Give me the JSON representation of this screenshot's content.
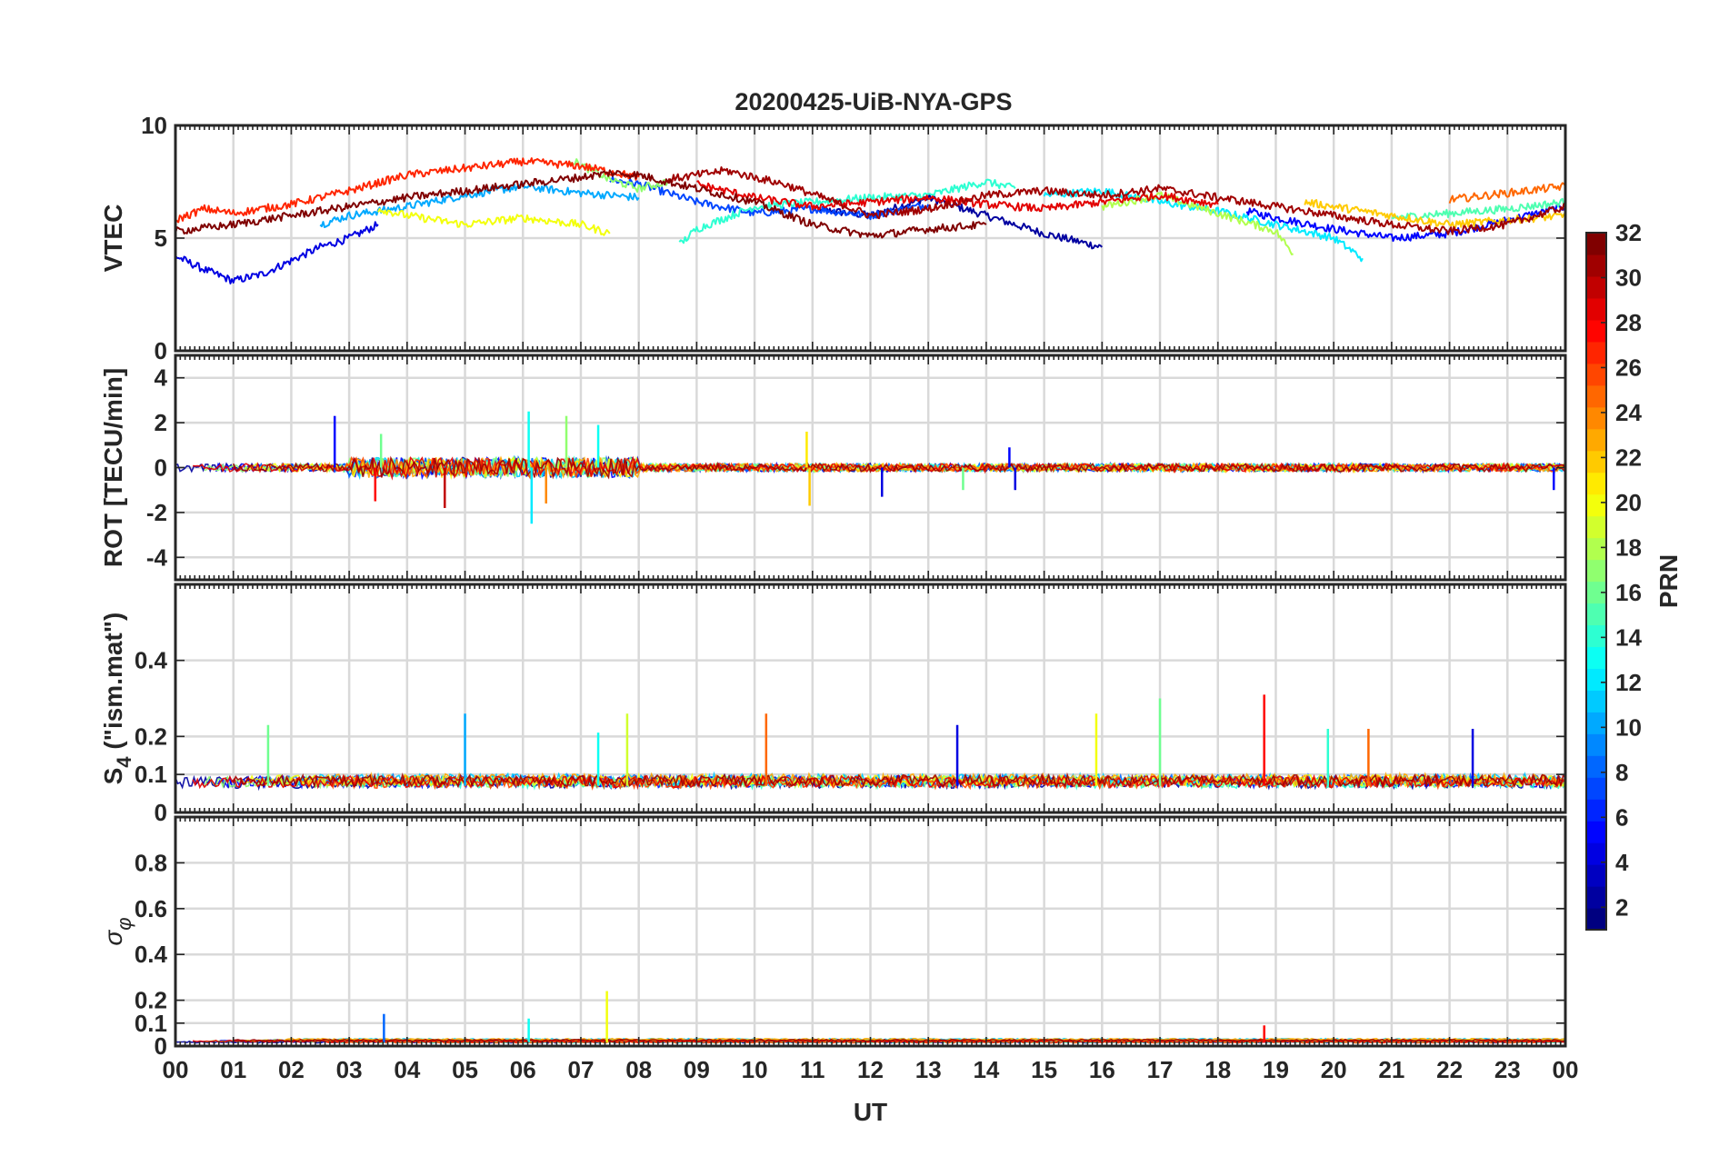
{
  "figure": {
    "title": "20200425-UiB-NYA-GPS"
  },
  "chart_data": [
    {
      "type": "line",
      "panel": "vtec",
      "title": "20200425-UiB-NYA-GPS",
      "ylabel": "VTEC",
      "xlabel": "",
      "xlim": [
        0,
        24
      ],
      "ylim": [
        0,
        10
      ],
      "yticks": [
        0,
        5,
        10
      ],
      "ytick_labels": [
        "0",
        "5",
        "10"
      ],
      "grid": true,
      "series": [
        {
          "prn": 2,
          "x": [
            11.0,
            12.0,
            13.0,
            14.0,
            15.0,
            16.0
          ],
          "y": [
            6.3,
            6.0,
            6.8,
            6.0,
            5.2,
            4.6
          ]
        },
        {
          "prn": 4,
          "x": [
            0.0,
            0.5,
            1.0,
            1.5,
            2.0,
            2.5,
            3.0,
            3.5
          ],
          "y": [
            4.2,
            3.6,
            3.1,
            3.4,
            4.0,
            4.6,
            5.0,
            5.6
          ]
        },
        {
          "prn": 5,
          "x": [
            18.5,
            19.0,
            20.0,
            21.0,
            22.0,
            23.0,
            24.0
          ],
          "y": [
            6.2,
            5.9,
            5.4,
            5.0,
            5.2,
            5.8,
            6.4
          ]
        },
        {
          "prn": 7,
          "x": [
            7.5,
            8.0,
            9.0,
            10.0,
            11.0,
            12.0,
            13.0
          ],
          "y": [
            7.6,
            7.4,
            6.6,
            6.1,
            6.3,
            6.0,
            6.5
          ]
        },
        {
          "prn": 10,
          "x": [
            2.5,
            3.0,
            4.0,
            5.0,
            6.0,
            7.0,
            8.0
          ],
          "y": [
            5.6,
            6.0,
            6.4,
            6.9,
            7.3,
            7.0,
            6.8
          ]
        },
        {
          "prn": 12,
          "x": [
            15.0,
            16.0,
            17.0,
            18.0,
            19.0,
            20.0,
            20.5
          ],
          "y": [
            6.9,
            7.1,
            6.6,
            6.2,
            5.6,
            5.0,
            4.1
          ]
        },
        {
          "prn": 14,
          "x": [
            8.7,
            9.0,
            10.0,
            11.0,
            12.0,
            13.0,
            14.0,
            14.5
          ],
          "y": [
            4.7,
            5.4,
            6.4,
            6.6,
            6.8,
            6.9,
            7.5,
            7.2
          ]
        },
        {
          "prn": 15,
          "x": [
            21.0,
            22.0,
            23.0,
            24.0
          ],
          "y": [
            5.9,
            6.1,
            6.3,
            6.6
          ]
        },
        {
          "prn": 17,
          "x": [
            6.8,
            7.5,
            8.0,
            8.5
          ],
          "y": [
            8.5,
            7.6,
            7.2,
            7.5
          ]
        },
        {
          "prn": 18,
          "x": [
            16.0,
            17.0,
            18.0,
            19.0,
            19.3
          ],
          "y": [
            6.4,
            6.9,
            6.1,
            5.3,
            4.3
          ]
        },
        {
          "prn": 20,
          "x": [
            3.5,
            4.0,
            5.0,
            6.0,
            7.0,
            7.5
          ],
          "y": [
            6.3,
            6.0,
            5.6,
            5.9,
            5.6,
            5.2
          ]
        },
        {
          "prn": 22,
          "x": [
            19.5,
            20.0,
            21.0,
            22.0,
            23.0,
            24.0
          ],
          "y": [
            6.6,
            6.4,
            6.0,
            5.6,
            5.8,
            6.0
          ]
        },
        {
          "prn": 25,
          "x": [
            22.0,
            23.0,
            24.0
          ],
          "y": [
            6.7,
            7.0,
            7.3
          ]
        },
        {
          "prn": 27,
          "x": [
            0.0,
            0.5,
            1.0,
            2.0,
            3.0,
            4.0,
            5.0,
            6.0,
            7.0,
            8.0
          ],
          "y": [
            5.8,
            6.3,
            6.1,
            6.5,
            7.1,
            7.8,
            8.1,
            8.4,
            8.2,
            7.7
          ]
        },
        {
          "prn": 29,
          "x": [
            9.0,
            10.0,
            11.0,
            12.0,
            13.0,
            14.0,
            15.0,
            16.0,
            17.0,
            18.0
          ],
          "y": [
            7.4,
            6.8,
            6.4,
            6.6,
            6.8,
            6.5,
            6.3,
            6.6,
            6.9,
            6.5
          ]
        },
        {
          "prn": 31,
          "x": [
            8.5,
            9.5,
            10.5,
            11.5,
            12.0,
            13.0,
            14.0,
            15.0,
            16.0,
            17.0,
            18.0,
            19.0,
            20.0,
            21.0,
            22.0,
            23.0,
            24.0
          ],
          "y": [
            7.6,
            8.0,
            7.4,
            6.5,
            6.0,
            6.3,
            6.9,
            7.1,
            6.9,
            7.2,
            6.8,
            6.4,
            6.0,
            5.6,
            5.3,
            5.6,
            6.4
          ]
        },
        {
          "prn": 32,
          "x": [
            0.0,
            1.0,
            2.0,
            3.0,
            4.0,
            5.0,
            6.0,
            7.0,
            7.5,
            8.0,
            9.0,
            10.0,
            11.0,
            12.0,
            13.0,
            14.0
          ],
          "y": [
            5.3,
            5.6,
            6.0,
            6.4,
            6.8,
            7.1,
            7.4,
            7.7,
            7.9,
            7.8,
            7.2,
            6.6,
            5.6,
            5.1,
            5.4,
            5.6
          ]
        }
      ]
    },
    {
      "type": "line",
      "panel": "rot",
      "ylabel": "ROT [TECU/min]",
      "xlim": [
        0,
        24
      ],
      "ylim": [
        -5,
        5
      ],
      "yticks": [
        -4,
        -2,
        0,
        2,
        4
      ],
      "ytick_labels": [
        "-4",
        "-2",
        "0",
        "2",
        "4"
      ],
      "grid": true,
      "background_level": 0,
      "spikes": [
        {
          "prn": 5,
          "x": 2.75,
          "y": 2.3
        },
        {
          "prn": 16,
          "x": 3.55,
          "y": 1.5
        },
        {
          "prn": 28,
          "x": 3.45,
          "y": -1.5
        },
        {
          "prn": 30,
          "x": 4.65,
          "y": -1.8
        },
        {
          "prn": 13,
          "x": 6.1,
          "y": 2.5
        },
        {
          "prn": 12,
          "x": 6.15,
          "y": -2.5
        },
        {
          "prn": 17,
          "x": 6.75,
          "y": 2.3
        },
        {
          "prn": 24,
          "x": 6.4,
          "y": -1.6
        },
        {
          "prn": 13,
          "x": 7.3,
          "y": 1.9
        },
        {
          "prn": 21,
          "x": 10.9,
          "y": 1.6
        },
        {
          "prn": 22,
          "x": 10.95,
          "y": -1.7
        },
        {
          "prn": 4,
          "x": 12.2,
          "y": -1.3
        },
        {
          "prn": 16,
          "x": 13.6,
          "y": -1.0
        },
        {
          "prn": 5,
          "x": 14.4,
          "y": 0.9
        },
        {
          "prn": 4,
          "x": 14.5,
          "y": -1.0
        },
        {
          "prn": 5,
          "x": 23.8,
          "y": -1.0
        }
      ]
    },
    {
      "type": "line",
      "panel": "s4",
      "ylabel": "S4 (\"ism.mat\")",
      "ylabel_parts": {
        "main": "S",
        "sub": "4",
        "rest": " (\"ism.mat\")"
      },
      "xlim": [
        0,
        24
      ],
      "ylim": [
        0,
        0.6
      ],
      "yticks": [
        0,
        0.1,
        0.2,
        0.4
      ],
      "ytick_labels": [
        "0",
        "0.1",
        "0.2",
        "0.4"
      ],
      "grid": true,
      "background_level": 0.07,
      "spikes": [
        {
          "prn": 16,
          "x": 1.6,
          "y": 0.23
        },
        {
          "prn": 10,
          "x": 5.0,
          "y": 0.26
        },
        {
          "prn": 13,
          "x": 7.3,
          "y": 0.21
        },
        {
          "prn": 19,
          "x": 7.8,
          "y": 0.26
        },
        {
          "prn": 25,
          "x": 10.2,
          "y": 0.26
        },
        {
          "prn": 4,
          "x": 13.5,
          "y": 0.23
        },
        {
          "prn": 20,
          "x": 15.9,
          "y": 0.26
        },
        {
          "prn": 16,
          "x": 17.0,
          "y": 0.3
        },
        {
          "prn": 28,
          "x": 18.8,
          "y": 0.31
        },
        {
          "prn": 14,
          "x": 19.9,
          "y": 0.22
        },
        {
          "prn": 25,
          "x": 20.6,
          "y": 0.22
        },
        {
          "prn": 4,
          "x": 22.4,
          "y": 0.22
        }
      ]
    },
    {
      "type": "line",
      "panel": "sigma_phi",
      "ylabel": "σ φ",
      "ylabel_parts": {
        "main": "σ",
        "sub": "φ"
      },
      "xlabel": "UT",
      "xlim": [
        0,
        24
      ],
      "ylim": [
        0,
        1
      ],
      "yticks": [
        0,
        0.1,
        0.2,
        0.4,
        0.6,
        0.8
      ],
      "ytick_labels": [
        "0",
        "0.1",
        "0.2",
        "0.4",
        "0.6",
        "0.8"
      ],
      "xticks": [
        0,
        1,
        2,
        3,
        4,
        5,
        6,
        7,
        8,
        9,
        10,
        11,
        12,
        13,
        14,
        15,
        16,
        17,
        18,
        19,
        20,
        21,
        22,
        23,
        24
      ],
      "xtick_labels": [
        "00",
        "01",
        "02",
        "03",
        "04",
        "05",
        "06",
        "07",
        "08",
        "09",
        "10",
        "11",
        "12",
        "13",
        "14",
        "15",
        "16",
        "17",
        "18",
        "19",
        "20",
        "21",
        "22",
        "23",
        "00"
      ],
      "grid": true,
      "background_level": 0.015,
      "spikes": [
        {
          "prn": 8,
          "x": 3.6,
          "y": 0.14
        },
        {
          "prn": 13,
          "x": 6.1,
          "y": 0.12
        },
        {
          "prn": 20,
          "x": 7.45,
          "y": 0.24
        },
        {
          "prn": 28,
          "x": 18.8,
          "y": 0.09
        }
      ]
    }
  ],
  "colorbar": {
    "label": "PRN",
    "range": [
      1,
      32
    ],
    "colormap": "jet",
    "ticks": [
      2,
      4,
      6,
      8,
      10,
      12,
      14,
      16,
      18,
      20,
      22,
      24,
      26,
      28,
      30,
      32
    ],
    "tick_labels": [
      "2",
      "4",
      "6",
      "8",
      "10",
      "12",
      "14",
      "16",
      "18",
      "20",
      "22",
      "24",
      "26",
      "28",
      "30",
      "32"
    ]
  }
}
